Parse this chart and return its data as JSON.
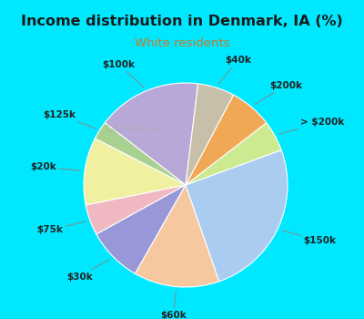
{
  "title": "Income distribution in Denmark, IA (%)",
  "subtitle": "White residents",
  "title_color": "#1a1a1a",
  "subtitle_color": "#cc7722",
  "background_outer": "#00e8ff",
  "background_inner_color": "#e8f5ee",
  "labels": [
    "$100k",
    "$125k",
    "$20k",
    "$75k",
    "$30k",
    "$60k",
    "$150k",
    "> $200k",
    "$200k",
    "$40k"
  ],
  "values": [
    17,
    3,
    11,
    5,
    9,
    14,
    26,
    5,
    7,
    6
  ],
  "colors": [
    "#b8a8d8",
    "#a8d090",
    "#f0f0a0",
    "#f0b8c0",
    "#9898d8",
    "#f5c8a0",
    "#aaccf0",
    "#cceb90",
    "#f0a855",
    "#c8bfaa"
  ],
  "start_angle": 83,
  "watermark": "City-Data.com"
}
